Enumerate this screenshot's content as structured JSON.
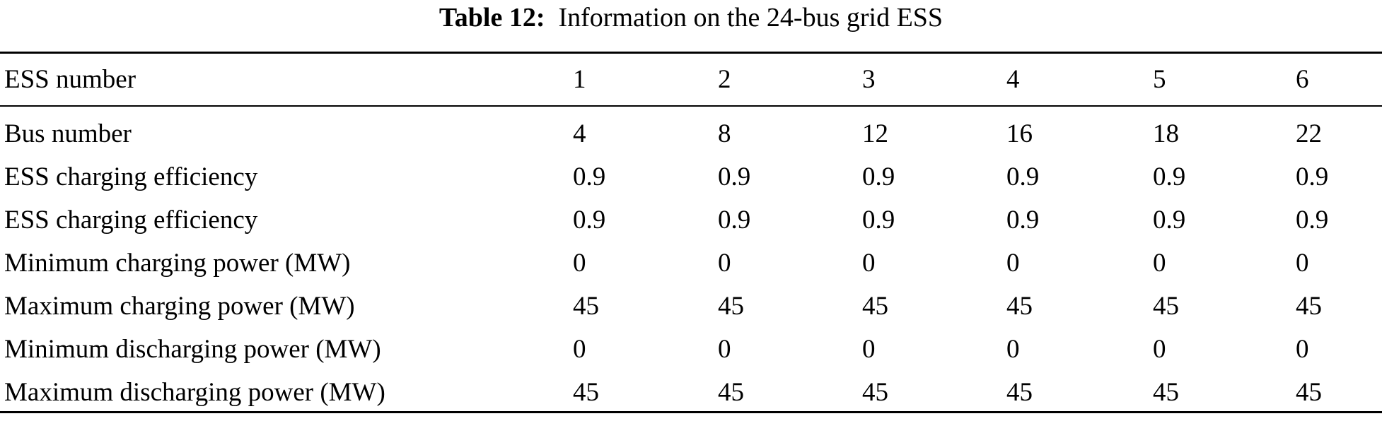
{
  "title": {
    "label": "Table 12:",
    "text": "Information on the 24-bus grid ESS"
  },
  "header": {
    "label": "ESS number",
    "values": [
      "1",
      "2",
      "3",
      "4",
      "5",
      "6"
    ]
  },
  "rows": [
    {
      "label": "Bus number",
      "values": [
        "4",
        "8",
        "12",
        "16",
        "18",
        "22"
      ]
    },
    {
      "label": "ESS charging efficiency",
      "values": [
        "0.9",
        "0.9",
        "0.9",
        "0.9",
        "0.9",
        "0.9"
      ]
    },
    {
      "label": "ESS charging efficiency",
      "values": [
        "0.9",
        "0.9",
        "0.9",
        "0.9",
        "0.9",
        "0.9"
      ]
    },
    {
      "label": "Minimum charging power (MW)",
      "values": [
        "0",
        "0",
        "0",
        "0",
        "0",
        "0"
      ]
    },
    {
      "label": "Maximum charging power (MW)",
      "values": [
        "45",
        "45",
        "45",
        "45",
        "45",
        "45"
      ]
    },
    {
      "label": "Minimum discharging power (MW)",
      "values": [
        "0",
        "0",
        "0",
        "0",
        "0",
        "0"
      ]
    },
    {
      "label": "Maximum discharging power (MW)",
      "values": [
        "45",
        "45",
        "45",
        "45",
        "45",
        "45"
      ]
    }
  ]
}
